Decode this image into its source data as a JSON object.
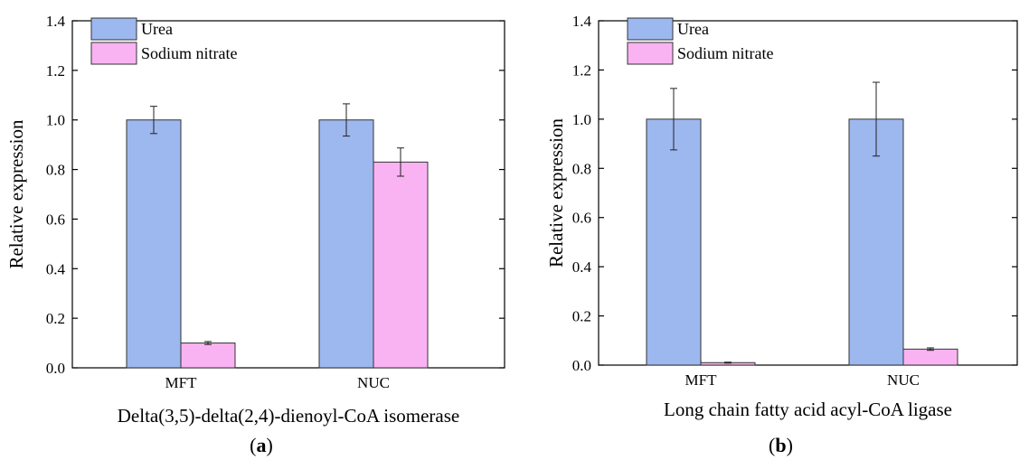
{
  "chart_data": [
    {
      "type": "bar",
      "panel_label": "a",
      "categories": [
        "MFT",
        "NUC"
      ],
      "series": [
        {
          "name": "Urea",
          "color": "#9db7ef",
          "values": [
            1.0,
            1.0
          ],
          "errors": [
            0.055,
            0.065
          ]
        },
        {
          "name": "Sodium nitrate",
          "color": "#f9b3f2",
          "values": [
            0.1,
            0.83
          ],
          "errors": [
            0.006,
            0.057
          ]
        }
      ],
      "xlabel": "Delta(3,5)-delta(2,4)-dienoyl-CoA isomerase",
      "ylabel": "Relative expression",
      "ylim": [
        0,
        1.4
      ],
      "yticks": [
        "0.0",
        "0.2",
        "0.4",
        "0.6",
        "0.8",
        "1.0",
        "1.2",
        "1.4"
      ],
      "legend_position": "top-left",
      "grid": false
    },
    {
      "type": "bar",
      "panel_label": "b",
      "categories": [
        "MFT",
        "NUC"
      ],
      "series": [
        {
          "name": "Urea",
          "color": "#9db7ef",
          "values": [
            1.0,
            1.0
          ],
          "errors": [
            0.125,
            0.15
          ]
        },
        {
          "name": "Sodium nitrate",
          "color": "#f9b3f2",
          "values": [
            0.01,
            0.065
          ],
          "errors": [
            0.002,
            0.005
          ]
        }
      ],
      "xlabel": "Long chain fatty acid acyl-CoA ligase",
      "ylabel": "Relative expression",
      "ylim": [
        0,
        1.4
      ],
      "yticks": [
        "0.0",
        "0.2",
        "0.4",
        "0.6",
        "0.8",
        "1.0",
        "1.2",
        "1.4"
      ],
      "legend_position": "top-left",
      "grid": false
    }
  ]
}
